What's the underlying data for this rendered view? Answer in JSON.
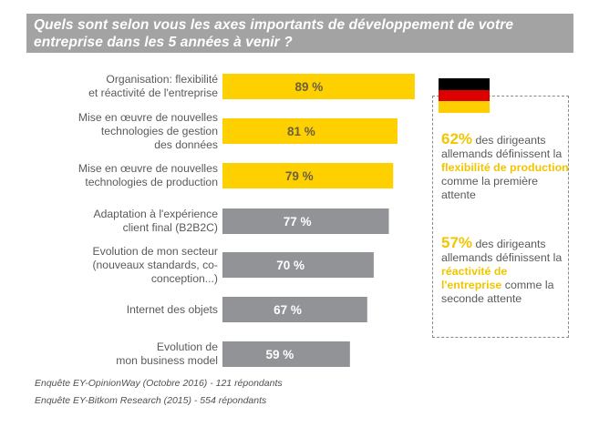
{
  "chart_data": {
    "type": "bar",
    "orientation": "horizontal",
    "title": "Quels sont selon vous les axes importants de développement de votre entreprise dans les 5 années à venir ?",
    "title_lines": [
      "Quels sont selon vous les axes importants de développement de votre",
      "entreprise dans les 5 années à venir ?"
    ],
    "xlabel": "",
    "ylabel": "",
    "xlim": [
      0,
      100
    ],
    "grid": false,
    "unit": "%",
    "categories": [
      "Organisation: flexibilité et réactivité de l'entreprise",
      "Mise en œuvre de nouvelles technologies de gestion des données",
      "Mise en œuvre de nouvelles technologies de production",
      "Adaptation à l'expérience client final (B2B2C)",
      "Evolution de mon secteur (nouveaux standards, co-conception...)",
      "Internet des objets",
      "Evolution de mon business model"
    ],
    "category_lines": [
      [
        "Organisation: flexibilité",
        "et réactivité de l'entreprise"
      ],
      [
        "Mise en œuvre de nouvelles",
        "technologies de gestion",
        "des données"
      ],
      [
        "Mise en œuvre de nouvelles",
        "technologies de production"
      ],
      [
        "Adaptation à l'expérience",
        "client final (B2B2C)"
      ],
      [
        "Evolution de mon secteur",
        "(nouveaux standards, co-",
        "conception...)"
      ],
      [
        "Internet des objets"
      ],
      [
        "Evolution de",
        "mon business model"
      ]
    ],
    "values": [
      89,
      81,
      79,
      77,
      70,
      67,
      59
    ],
    "data_labels": [
      "89 %",
      "81 %",
      "79 %",
      "77 %",
      "70 %",
      "67 %",
      "59 %"
    ],
    "highlight_count": 3,
    "colors": {
      "highlight": "#ffd000",
      "highlight_label": "#6b6040",
      "normal": "#929396",
      "normal_label": "#ffffff"
    }
  },
  "side_panel": {
    "flag": "germany-flag",
    "flag_colors": [
      "#000000",
      "#dd0000",
      "#ffce00"
    ],
    "notes": [
      {
        "stat": "62%",
        "text_before": " des dirigeants allemands définissent la ",
        "highlight": "flexibilité de production",
        "text_after": " comme la première attente"
      },
      {
        "stat": "57%",
        "text_before": " des dirigeants allemands définissent la ",
        "highlight": "réactivité de l'entreprise",
        "text_after": " comme la seconde attente"
      }
    ]
  },
  "sources": [
    "Enquête EY-OpinionWay (Octobre 2016) - 121 répondants",
    "Enquête EY-Bitkom Research (2015) - 554 répondants"
  ]
}
